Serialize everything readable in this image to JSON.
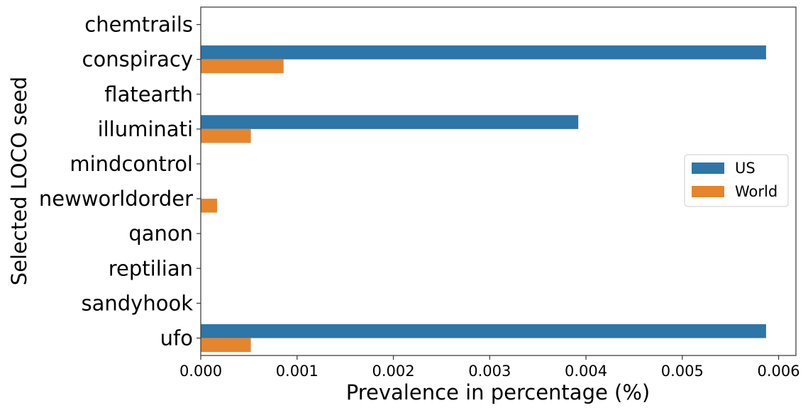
{
  "chart_data": {
    "type": "bar",
    "orientation": "horizontal",
    "title": "",
    "xlabel": "Prevalence in percentage (%)",
    "ylabel": "Selected LOCO seed",
    "categories": [
      "chemtrails",
      "conspiracy",
      "flatearth",
      "illuminati",
      "mindcontrol",
      "newworldorder",
      "qanon",
      "reptilian",
      "sandyhook",
      "ufo"
    ],
    "series": [
      {
        "name": "US",
        "color": "#2e75a8",
        "values": [
          0,
          0.00587,
          0,
          0.00392,
          0,
          0,
          0,
          0,
          0,
          0.00587
        ]
      },
      {
        "name": "World",
        "color": "#e6852c",
        "values": [
          0,
          0.00086,
          0,
          0.00052,
          0,
          0.00017,
          0,
          0,
          0,
          0.00052
        ]
      }
    ],
    "xlim": [
      0,
      0.00618
    ],
    "xticks": [
      "0.000",
      "0.001",
      "0.002",
      "0.003",
      "0.004",
      "0.005",
      "0.006"
    ],
    "xtick_values": [
      0,
      0.001,
      0.002,
      0.003,
      0.004,
      0.005,
      0.006
    ],
    "grid": false,
    "legend_position": "center-right"
  }
}
